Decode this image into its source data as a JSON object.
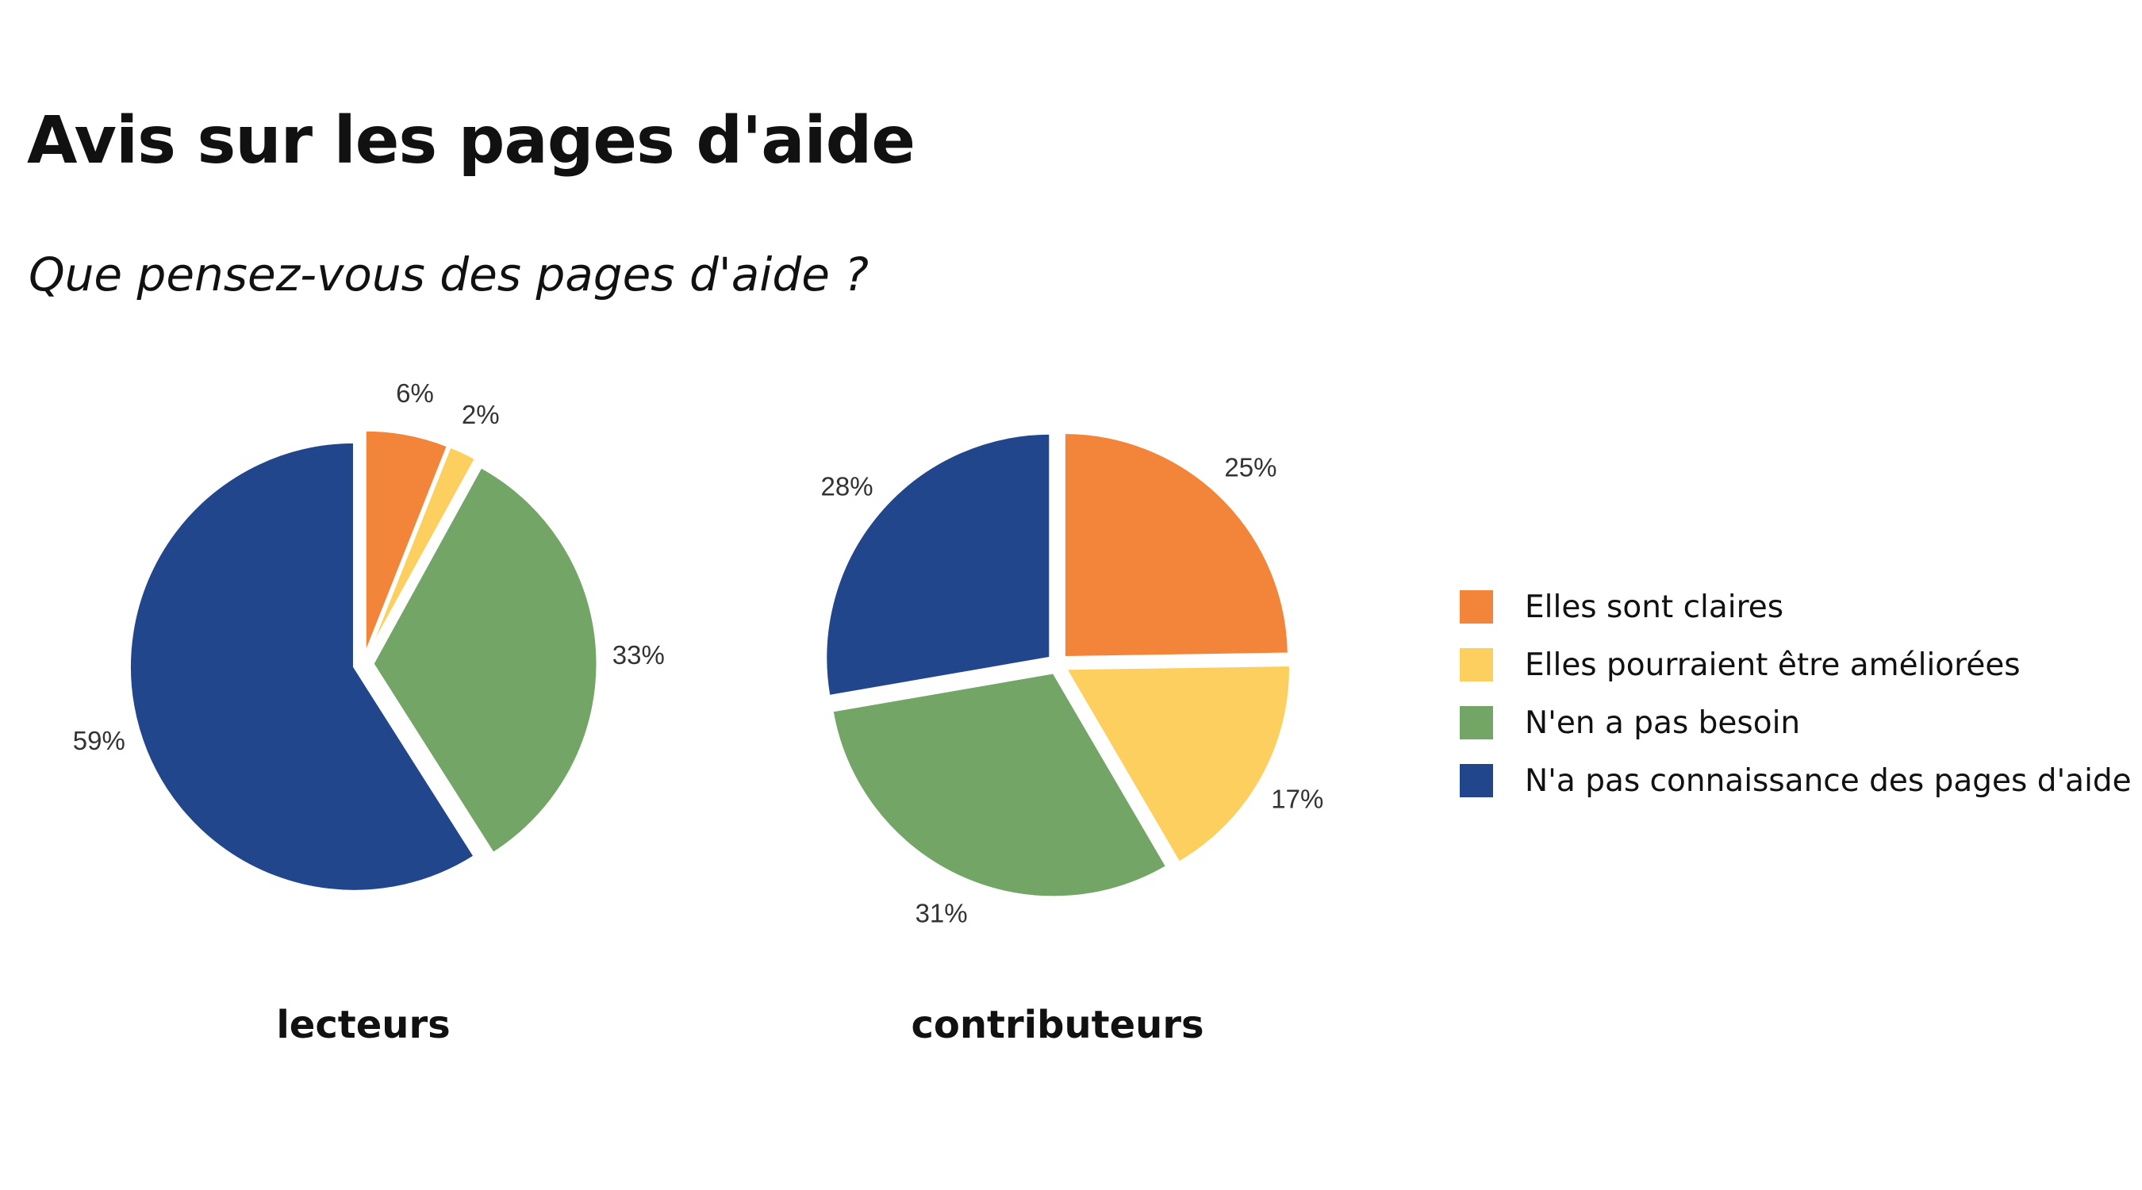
{
  "title": "Avis sur les pages d'aide",
  "subtitle": "Que pensez-vous des pages d'aide ?",
  "chart_data": {
    "type": "pie",
    "categories": [
      "Elles sont claires",
      "Elles pourraient être améliorées",
      "N'en a pas besoin",
      "N'a pas connaissance des pages d'aide"
    ],
    "colors": [
      "#f28539",
      "#fdcf5e",
      "#73a567",
      "#22468c"
    ],
    "legend_position": "right",
    "series": [
      {
        "name": "lecteurs",
        "values": [
          6,
          2,
          33,
          59
        ],
        "labels": [
          "6%",
          "2%",
          "33%",
          "59%"
        ]
      },
      {
        "name": "contributeurs",
        "values": [
          25,
          17,
          31,
          28
        ],
        "labels": [
          "25%",
          "17%",
          "31%",
          "28%"
        ]
      }
    ]
  }
}
